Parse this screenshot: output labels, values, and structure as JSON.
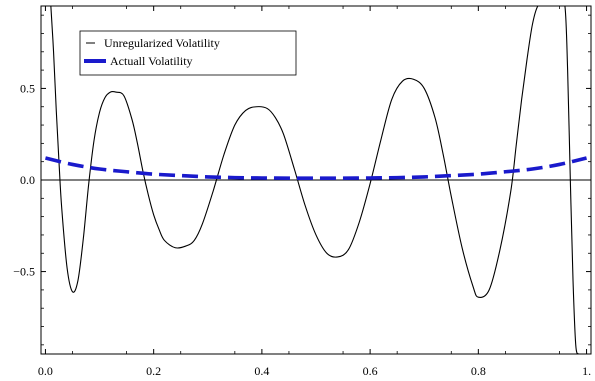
{
  "chart_data": {
    "type": "line",
    "title": "",
    "xlabel": "",
    "ylabel": "",
    "xlim": [
      0.0,
      1.0
    ],
    "ylim": [
      -0.95,
      0.95
    ],
    "xticks": [
      {
        "value": 0.0,
        "label": "0.0"
      },
      {
        "value": 0.2,
        "label": "0.2"
      },
      {
        "value": 0.4,
        "label": "0.4"
      },
      {
        "value": 0.6,
        "label": "0.6"
      },
      {
        "value": 0.8,
        "label": "0.8"
      },
      {
        "value": 1.0,
        "label": "1."
      }
    ],
    "yticks": [
      {
        "value": 0.5,
        "label": "0.5"
      },
      {
        "value": 0.0,
        "label": "0.0"
      },
      {
        "value": -0.5,
        "label": "−0.5"
      }
    ],
    "grid": false,
    "legend_position": "top-left",
    "series": [
      {
        "name": "Unregularized Volatility",
        "color": "#000000",
        "style": "solid",
        "x": [
          0.01,
          0.015,
          0.02,
          0.025,
          0.03,
          0.04,
          0.05,
          0.06,
          0.07,
          0.08,
          0.09,
          0.1,
          0.11,
          0.12,
          0.13,
          0.145,
          0.16,
          0.17,
          0.18,
          0.19,
          0.2,
          0.21,
          0.22,
          0.24,
          0.26,
          0.275,
          0.29,
          0.31,
          0.33,
          0.35,
          0.37,
          0.39,
          0.41,
          0.425,
          0.44,
          0.46,
          0.48,
          0.5,
          0.52,
          0.54,
          0.56,
          0.58,
          0.6,
          0.62,
          0.64,
          0.66,
          0.68,
          0.7,
          0.72,
          0.735,
          0.75,
          0.77,
          0.79,
          0.8,
          0.82,
          0.84,
          0.86,
          0.87,
          0.88,
          0.89,
          0.9,
          0.91,
          0.92,
          0.93,
          0.935,
          0.94,
          0.95,
          0.96,
          0.965,
          0.97,
          0.975,
          0.98,
          0.985
        ],
        "y": [
          0.95,
          0.7,
          0.38,
          0.1,
          -0.15,
          -0.48,
          -0.61,
          -0.55,
          -0.32,
          -0.02,
          0.22,
          0.37,
          0.45,
          0.48,
          0.48,
          0.46,
          0.33,
          0.2,
          0.05,
          -0.08,
          -0.19,
          -0.27,
          -0.33,
          -0.37,
          -0.36,
          -0.33,
          -0.24,
          -0.06,
          0.14,
          0.3,
          0.38,
          0.4,
          0.39,
          0.34,
          0.25,
          0.06,
          -0.14,
          -0.3,
          -0.4,
          -0.42,
          -0.38,
          -0.23,
          -0.02,
          0.22,
          0.44,
          0.54,
          0.55,
          0.5,
          0.34,
          0.14,
          -0.09,
          -0.37,
          -0.58,
          -0.64,
          -0.6,
          -0.38,
          -0.06,
          0.19,
          0.44,
          0.66,
          0.85,
          0.95,
          0.95,
          0.95,
          0.95,
          0.95,
          0.95,
          0.95,
          0.6,
          0.0,
          -0.55,
          -0.9,
          -0.95
        ]
      },
      {
        "name": "Actuall Volatility",
        "color": "#1a1acc",
        "style": "dashed",
        "x": [
          0.0,
          0.05,
          0.1,
          0.15,
          0.2,
          0.25,
          0.3,
          0.35,
          0.4,
          0.45,
          0.5,
          0.55,
          0.6,
          0.65,
          0.7,
          0.75,
          0.8,
          0.85,
          0.9,
          0.95,
          1.0
        ],
        "y": [
          0.12,
          0.085,
          0.06,
          0.045,
          0.032,
          0.024,
          0.017,
          0.013,
          0.011,
          0.01,
          0.01,
          0.01,
          0.011,
          0.013,
          0.017,
          0.024,
          0.032,
          0.045,
          0.06,
          0.085,
          0.12
        ]
      }
    ]
  }
}
